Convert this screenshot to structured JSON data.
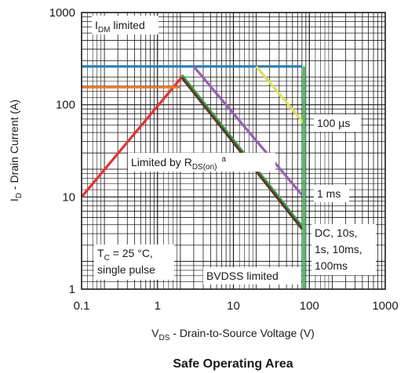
{
  "chart_data": {
    "type": "line",
    "title": "Safe Operating Area",
    "xscale": "log",
    "yscale": "log",
    "xlim": [
      0.1,
      1000
    ],
    "ylim": [
      1,
      1000
    ],
    "grid": true,
    "xticks": [
      "0.1",
      "1",
      "10",
      "100",
      "1000"
    ],
    "yticks": [
      "1",
      "10",
      "100",
      "1000"
    ],
    "xlabel": {
      "main": "V",
      "sub": "DS",
      "rest": " - Drain-to-Source Voltage (V)"
    },
    "ylabel": {
      "main": "I",
      "sub": "D",
      "rest": " - Drain Current (A)"
    },
    "series": [
      {
        "color": "#e8302e",
        "points": [
          [
            0.1,
            10
          ],
          [
            2.1,
            200
          ]
        ]
      },
      {
        "color": "#1f7fc4",
        "points": [
          [
            0.1,
            260
          ],
          [
            80,
            260
          ]
        ]
      },
      {
        "color": "#f07a2a",
        "points": [
          [
            0.1,
            155
          ],
          [
            2.0,
            155
          ]
        ]
      },
      {
        "color": "#dede5a",
        "points": [
          [
            20,
            260
          ],
          [
            85,
            63
          ]
        ]
      },
      {
        "color": "#9b5cb8",
        "points": [
          [
            3.0,
            260
          ],
          [
            80,
            10.5
          ]
        ]
      },
      {
        "color": "#3da34a",
        "points": [
          [
            2.1,
            210
          ],
          [
            80,
            4.8
          ]
        ]
      },
      {
        "color": "#5a3a28",
        "points": [
          [
            2.1,
            196
          ],
          [
            80,
            4.5
          ]
        ]
      },
      {
        "color": "#3ec85a",
        "points": [
          [
            85,
            260
          ],
          [
            85,
            1
          ]
        ]
      }
    ],
    "annotations": {
      "idm": {
        "main": "I",
        "sub": "DM",
        "rest": " limited"
      },
      "rds": {
        "main": "Limited by R",
        "sub": "DS(on)",
        "sup": "a"
      },
      "us100": "100 µs",
      "ms1": "1 ms",
      "dc": [
        "DC, 10s,",
        "1s, 10ms,",
        "100ms"
      ],
      "tc": {
        "main": "T",
        "sub": "C",
        "rest": " = 25 °C,"
      },
      "pulse": "single pulse",
      "bvdss": "BVDSS limited"
    }
  }
}
